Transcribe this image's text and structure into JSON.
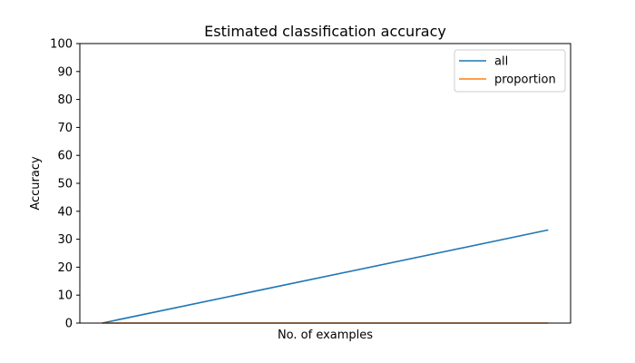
{
  "chart_data": {
    "type": "line",
    "title": "Estimated classification accuracy",
    "xlabel": "No. of examples",
    "ylabel": "Accuracy",
    "ylim": [
      0,
      100
    ],
    "xlim": [
      -0.05,
      1.05
    ],
    "yticks": [
      "0",
      "10",
      "20",
      "30",
      "40",
      "50",
      "60",
      "70",
      "80",
      "90",
      "100"
    ],
    "xticks": [],
    "grid": false,
    "legend_position": "top-right",
    "series": [
      {
        "name": "all",
        "color": "#1f77b4",
        "x": [
          0,
          1
        ],
        "y": [
          0,
          33.3
        ]
      },
      {
        "name": "proportion",
        "color": "#ff7f0e",
        "x": [
          0,
          1
        ],
        "y": [
          0,
          0
        ]
      }
    ]
  }
}
